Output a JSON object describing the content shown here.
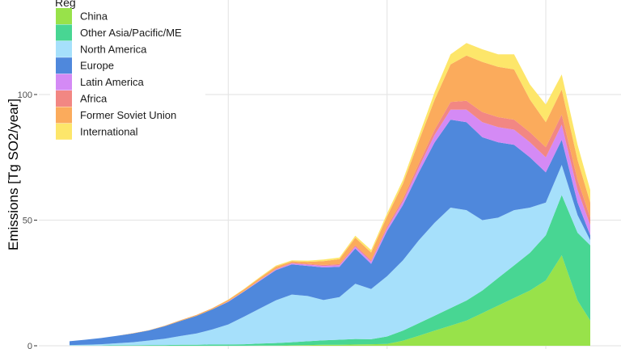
{
  "chart_data": {
    "type": "area",
    "stacked": true,
    "title": "",
    "xlabel": "",
    "ylabel": "Emissions [Tg SO2/year]",
    "ylim": [
      0,
      138
    ],
    "yticks": [
      0,
      50,
      100
    ],
    "grid": true,
    "legend_position": "top-left",
    "legend_title": "Reg",
    "x": [
      1850,
      1855,
      1860,
      1865,
      1870,
      1875,
      1880,
      1885,
      1890,
      1895,
      1900,
      1905,
      1910,
      1915,
      1920,
      1925,
      1930,
      1935,
      1940,
      1945,
      1950,
      1955,
      1960,
      1965,
      1970,
      1975,
      1980,
      1985,
      1990,
      1995,
      2000,
      2005,
      2010,
      2014
    ],
    "series": [
      {
        "name": "China",
        "color": "#98e24a",
        "values": [
          0,
          0,
          0,
          0,
          0,
          0,
          0,
          0,
          0,
          0,
          0,
          0,
          0.1,
          0.1,
          0.2,
          0.3,
          0.4,
          0.4,
          0.5,
          0.6,
          0.7,
          2,
          4,
          6,
          8,
          10,
          13,
          16,
          19,
          22,
          26,
          36,
          18,
          10
        ]
      },
      {
        "name": "Other Asia/Pacific/ME",
        "color": "#48d693",
        "values": [
          0.1,
          0.1,
          0.1,
          0.2,
          0.2,
          0.3,
          0.3,
          0.4,
          0.4,
          0.5,
          0.5,
          0.6,
          0.8,
          1,
          1.2,
          1.5,
          1.8,
          2,
          2.2,
          2,
          3,
          4,
          5,
          6,
          7,
          8,
          9,
          11,
          13,
          15,
          18,
          24,
          27,
          30
        ]
      },
      {
        "name": "North America",
        "color": "#a6e0fb",
        "values": [
          0.2,
          0.3,
          0.5,
          0.8,
          1.2,
          1.8,
          2.5,
          3.5,
          4.5,
          6,
          8,
          11,
          14,
          17,
          19,
          18,
          16,
          17,
          22,
          20,
          24,
          28,
          33,
          37,
          40,
          36,
          28,
          24,
          22,
          18,
          13,
          12,
          7,
          2
        ]
      },
      {
        "name": "Europe",
        "color": "#4f88dc",
        "values": [
          1.5,
          2,
          2.5,
          3,
          3.5,
          4,
          5,
          6,
          7,
          8,
          9,
          10,
          11,
          12,
          12,
          12,
          13,
          12,
          14,
          10,
          18,
          22,
          27,
          32,
          35,
          35,
          33,
          30,
          26,
          20,
          12,
          10,
          5,
          2
        ]
      },
      {
        "name": "Latin America",
        "color": "#d48af5",
        "values": [
          0,
          0,
          0,
          0,
          0,
          0,
          0,
          0,
          0,
          0,
          0.1,
          0.1,
          0.2,
          0.3,
          0.4,
          0.5,
          0.6,
          0.7,
          0.8,
          0.9,
          1,
          1.5,
          2,
          3,
          4,
          5,
          6,
          6,
          6,
          6,
          6,
          6,
          5,
          4
        ]
      },
      {
        "name": "Africa",
        "color": "#f28783",
        "values": [
          0,
          0,
          0,
          0,
          0,
          0,
          0,
          0,
          0,
          0,
          0.1,
          0.1,
          0.2,
          0.2,
          0.3,
          0.3,
          0.4,
          0.4,
          0.5,
          0.6,
          0.8,
          1,
          1.5,
          2,
          3,
          3.5,
          4,
          4,
          4,
          4,
          4,
          4,
          4,
          3
        ]
      },
      {
        "name": "Former Soviet Union",
        "color": "#fbab5c",
        "values": [
          0,
          0,
          0,
          0,
          0.1,
          0.1,
          0.2,
          0.3,
          0.4,
          0.5,
          0.6,
          0.7,
          0.8,
          0.9,
          0.5,
          0.8,
          1.5,
          2,
          3,
          3,
          4,
          6,
          9,
          12,
          15,
          18,
          20,
          20,
          20,
          13,
          10,
          10,
          8,
          6
        ]
      },
      {
        "name": "International",
        "color": "#fde66a",
        "values": [
          0,
          0,
          0,
          0,
          0,
          0,
          0,
          0,
          0,
          0,
          0.1,
          0.2,
          0.3,
          0.4,
          0.4,
          0.5,
          0.6,
          0.6,
          0.8,
          1,
          1.2,
          1.5,
          2,
          3,
          4,
          5,
          5,
          5,
          6,
          6,
          7,
          6,
          6,
          5
        ]
      }
    ]
  }
}
